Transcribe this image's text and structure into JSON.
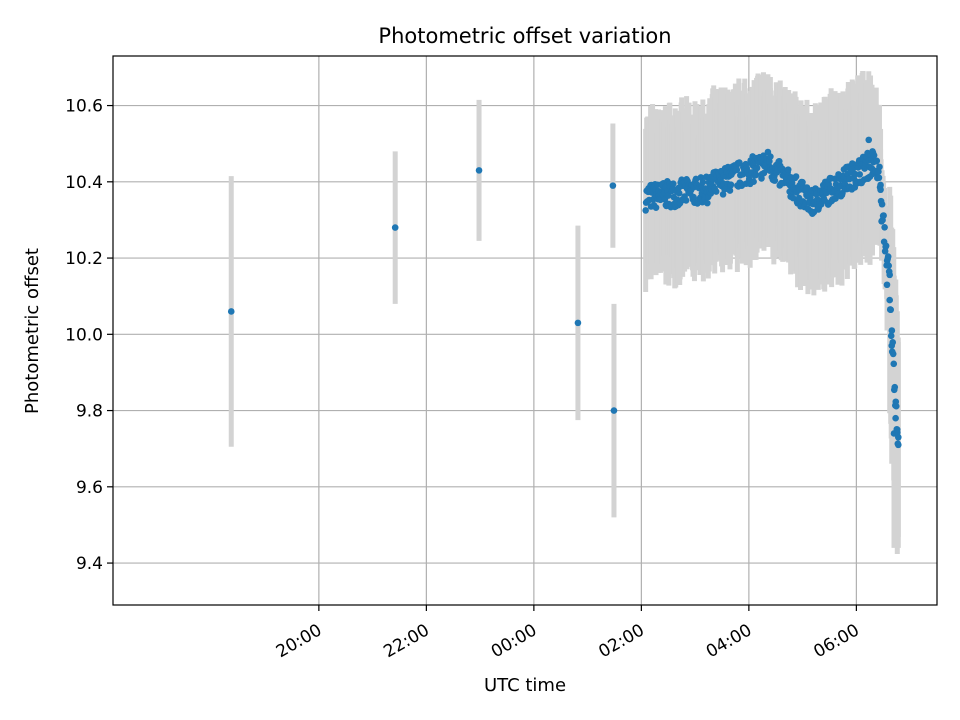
{
  "chart_data": {
    "type": "scatter",
    "title": "Photometric offset variation",
    "xlabel": "UTC time",
    "ylabel": "Photometric offset",
    "x_unit": "hours of UTC day (values ≥ 24 fall on the next day)",
    "xlim": [
      16.17,
      31.5
    ],
    "ylim": [
      9.29,
      10.73
    ],
    "grid": true,
    "x_ticks": [
      {
        "value": 20,
        "label": "20:00"
      },
      {
        "value": 22,
        "label": "22:00"
      },
      {
        "value": 24,
        "label": "00:00"
      },
      {
        "value": 26,
        "label": "02:00"
      },
      {
        "value": 28,
        "label": "04:00"
      },
      {
        "value": 30,
        "label": "06:00"
      }
    ],
    "y_ticks": [
      {
        "value": 9.4,
        "label": "9.4"
      },
      {
        "value": 9.6,
        "label": "9.6"
      },
      {
        "value": 9.8,
        "label": "9.8"
      },
      {
        "value": 10.0,
        "label": "10.0"
      },
      {
        "value": 10.2,
        "label": "10.2"
      },
      {
        "value": 10.4,
        "label": "10.4"
      },
      {
        "value": 10.6,
        "label": "10.6"
      }
    ],
    "series": [
      {
        "marker_color": "#1f77b4",
        "errorbar_color": "#d3d3d3",
        "points": [
          {
            "x": 18.37,
            "y": 10.06,
            "yerr": 0.355
          },
          {
            "x": 21.42,
            "y": 10.28,
            "yerr": 0.2
          },
          {
            "x": 22.98,
            "y": 10.43,
            "yerr": 0.185
          },
          {
            "x": 24.82,
            "y": 10.03,
            "yerr": 0.255
          },
          {
            "x": 25.47,
            "y": 10.39,
            "yerr": 0.163
          },
          {
            "x": 25.49,
            "y": 9.8,
            "yerr": 0.28
          }
        ]
      },
      {
        "marker_color": "#1f77b4",
        "errorbar_color": "#d3d3d3",
        "dense_segments": [
          {
            "x_start": 26.08,
            "x_end": 27.3,
            "y_start": 10.36,
            "y_end": 10.38,
            "yerr": 0.19
          },
          {
            "x_start": 27.3,
            "x_end": 28.4,
            "y_start": 10.39,
            "y_end": 10.45,
            "yerr": 0.2
          },
          {
            "x_start": 28.4,
            "x_end": 29.2,
            "y_start": 10.44,
            "y_end": 10.34,
            "yerr": 0.2
          },
          {
            "x_start": 29.2,
            "x_end": 30.3,
            "y_start": 10.35,
            "y_end": 10.45,
            "yerr": 0.21
          },
          {
            "x_start": 30.3,
            "x_end": 30.45,
            "y_start": 10.45,
            "y_end": 10.41,
            "yerr": 0.17
          },
          {
            "x_start": 30.45,
            "x_end": 30.62,
            "y_start": 10.35,
            "y_end": 10.14,
            "yerr": 0.1
          },
          {
            "x_start": 30.62,
            "x_end": 30.78,
            "y_start": 10.08,
            "y_end": 9.72,
            "yerr": 0.28
          }
        ],
        "highlight_points": [
          {
            "x": 30.23,
            "y": 10.51,
            "yerr": 0.18
          },
          {
            "x": 30.57,
            "y": 10.13,
            "yerr": 0.12
          },
          {
            "x": 30.66,
            "y": 10.01,
            "yerr": 0.2
          },
          {
            "x": 30.7,
            "y": 9.74,
            "yerr": 0.3
          },
          {
            "x": 30.73,
            "y": 9.78,
            "yerr": 0.33
          },
          {
            "x": 30.78,
            "y": 9.71,
            "yerr": 0.27
          },
          {
            "x": 30.76,
            "y": 9.75,
            "yerr": 0.22
          }
        ]
      }
    ]
  }
}
